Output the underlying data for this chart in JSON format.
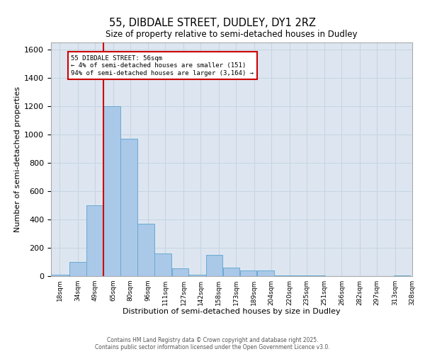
{
  "title1": "55, DIBDALE STREET, DUDLEY, DY1 2RZ",
  "title2": "Size of property relative to semi-detached houses in Dudley",
  "xlabel": "Distribution of semi-detached houses by size in Dudley",
  "ylabel": "Number of semi-detached properties",
  "footer1": "Contains HM Land Registry data © Crown copyright and database right 2025.",
  "footer2": "Contains public sector information licensed under the Open Government Licence v3.0.",
  "annotation_title": "55 DIBDALE STREET: 56sqm",
  "annotation_line1": "← 4% of semi-detached houses are smaller (151)",
  "annotation_line2": "94% of semi-detached houses are larger (3,164) →",
  "categories": [
    "18sqm",
    "34sqm",
    "49sqm",
    "65sqm",
    "80sqm",
    "96sqm",
    "111sqm",
    "127sqm",
    "142sqm",
    "158sqm",
    "173sqm",
    "189sqm",
    "204sqm",
    "220sqm",
    "235sqm",
    "251sqm",
    "266sqm",
    "282sqm",
    "297sqm",
    "313sqm",
    "328sqm"
  ],
  "bin_edges": [
    10.5,
    26.5,
    41.5,
    56.5,
    71.5,
    86.5,
    101.5,
    116.5,
    131.5,
    146.5,
    161.5,
    176.5,
    191.5,
    206.5,
    221.5,
    236.5,
    251.5,
    266.5,
    281.5,
    296.5,
    311.5,
    326.5
  ],
  "bin_centers": [
    18,
    34,
    49,
    65,
    80,
    96,
    111,
    127,
    142,
    158,
    173,
    189,
    204,
    220,
    235,
    251,
    266,
    282,
    297,
    313,
    328
  ],
  "values": [
    10,
    100,
    500,
    1200,
    970,
    370,
    160,
    55,
    10,
    150,
    60,
    40,
    40,
    5,
    5,
    5,
    2,
    2,
    1,
    1,
    5
  ],
  "bar_color": "#aac8e8",
  "bar_edge_color": "#6aaad4",
  "vline_color": "#cc0000",
  "vline_x": 56.5,
  "ylim": [
    0,
    1650
  ],
  "yticks": [
    0,
    200,
    400,
    600,
    800,
    1000,
    1200,
    1400,
    1600
  ],
  "annotation_box_color": "#cc0000",
  "background_color": "#dde6f0",
  "grid_color": "#c8d4e4",
  "figsize": [
    6.0,
    5.0
  ],
  "dpi": 100
}
